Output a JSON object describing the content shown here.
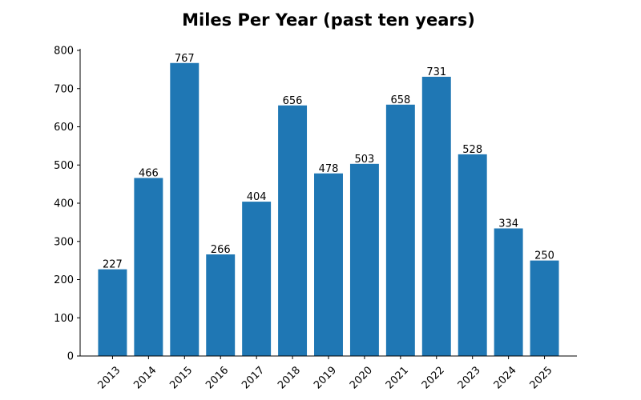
{
  "chart_data": {
    "type": "bar",
    "title": "Miles Per Year (past ten years)",
    "xlabel": "",
    "ylabel": "",
    "categories": [
      "2013",
      "2014",
      "2015",
      "2016",
      "2017",
      "2018",
      "2019",
      "2020",
      "2021",
      "2022",
      "2023",
      "2024",
      "2025"
    ],
    "values": [
      227,
      466,
      767,
      266,
      404,
      656,
      478,
      503,
      658,
      731,
      528,
      334,
      250
    ],
    "data_labels": [
      "227",
      "466",
      "767",
      "266",
      "404",
      "656",
      "478",
      "503",
      "658",
      "731",
      "528",
      "334",
      "250"
    ],
    "ylim": [
      0,
      800
    ],
    "yticks": [
      0,
      100,
      200,
      300,
      400,
      500,
      600,
      700,
      800
    ],
    "ytick_labels": [
      "0",
      "100",
      "200",
      "300",
      "400",
      "500",
      "600",
      "700",
      "800"
    ],
    "x_tick_rotation_deg": 45,
    "grid": false,
    "legend": "none",
    "bar_color": "#1f77b4",
    "spines": "left-bottom"
  }
}
